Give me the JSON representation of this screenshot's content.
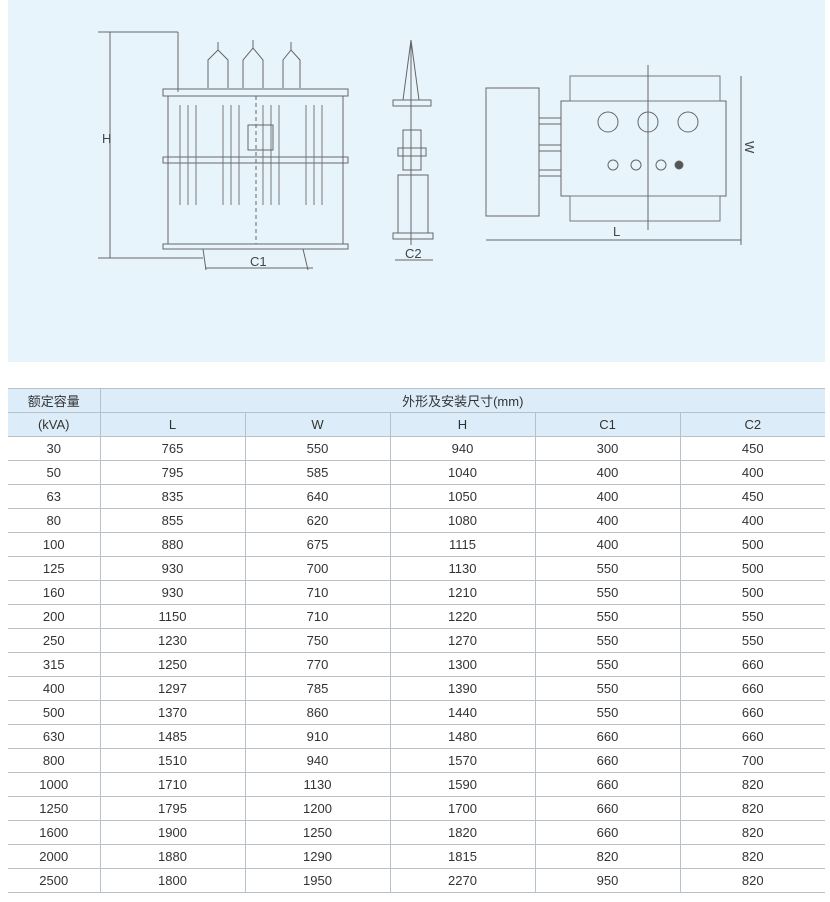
{
  "drawing": {
    "labels": {
      "H": "H",
      "C1": "C1",
      "C2": "C2",
      "L": "L",
      "W": "W"
    },
    "background": "#e8f4fc"
  },
  "table": {
    "capacity_header": "额定容量",
    "capacity_unit": "(kVA)",
    "dimensions_header": "外形及安装尺寸(mm)",
    "columns": [
      "L",
      "W",
      "H",
      "C1",
      "C2"
    ],
    "rows": [
      [
        "30",
        "765",
        "550",
        "940",
        "300",
        "450"
      ],
      [
        "50",
        "795",
        "585",
        "1040",
        "400",
        "400"
      ],
      [
        "63",
        "835",
        "640",
        "1050",
        "400",
        "450"
      ],
      [
        "80",
        "855",
        "620",
        "1080",
        "400",
        "400"
      ],
      [
        "100",
        "880",
        "675",
        "1115",
        "400",
        "500"
      ],
      [
        "125",
        "930",
        "700",
        "1130",
        "550",
        "500"
      ],
      [
        "160",
        "930",
        "710",
        "1210",
        "550",
        "500"
      ],
      [
        "200",
        "1150",
        "710",
        "1220",
        "550",
        "550"
      ],
      [
        "250",
        "1230",
        "750",
        "1270",
        "550",
        "550"
      ],
      [
        "315",
        "1250",
        "770",
        "1300",
        "550",
        "660"
      ],
      [
        "400",
        "1297",
        "785",
        "1390",
        "550",
        "660"
      ],
      [
        "500",
        "1370",
        "860",
        "1440",
        "550",
        "660"
      ],
      [
        "630",
        "1485",
        "910",
        "1480",
        "660",
        "660"
      ],
      [
        "800",
        "1510",
        "940",
        "1570",
        "660",
        "700"
      ],
      [
        "1000",
        "1710",
        "1130",
        "1590",
        "660",
        "820"
      ],
      [
        "1250",
        "1795",
        "1200",
        "1700",
        "660",
        "820"
      ],
      [
        "1600",
        "1900",
        "1250",
        "1820",
        "660",
        "820"
      ],
      [
        "2000",
        "1880",
        "1290",
        "1815",
        "820",
        "820"
      ],
      [
        "2500",
        "1800",
        "1950",
        "2270",
        "950",
        "820"
      ]
    ]
  }
}
